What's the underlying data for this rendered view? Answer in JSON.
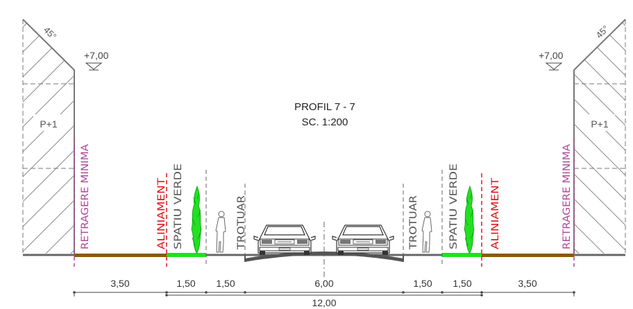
{
  "title": {
    "line1": "PROFIL 7 - 7",
    "line2": "SC. 1:200"
  },
  "buildings": {
    "left": {
      "floors": "P+1",
      "roof_angle": "45°",
      "elevation": "+7,00"
    },
    "right": {
      "floors": "P+1",
      "roof_angle": "45°",
      "elevation": "+7,00"
    }
  },
  "zone_labels": {
    "retragere": "RETRAGERE MINIMA",
    "aliniament": "ALINIAMENT",
    "spatiu_verde": "SPATIU VERDE",
    "trotuar": "TROTUAR"
  },
  "dimensions": {
    "segments": [
      "3,50",
      "1,50",
      "1,50",
      "6,00",
      "1,50",
      "1,50",
      "3,50"
    ],
    "total": "12,00"
  },
  "colors": {
    "retragere_line": "#b0489a",
    "aliniament_line": "#e0161b",
    "green_strip": "#19e619",
    "brown_strip": "#8b5a00",
    "ground": "#666666",
    "building_line": "#7a7a7a"
  },
  "icons": [
    "tree-icon",
    "pedestrian-icon",
    "car-front-icon"
  ]
}
